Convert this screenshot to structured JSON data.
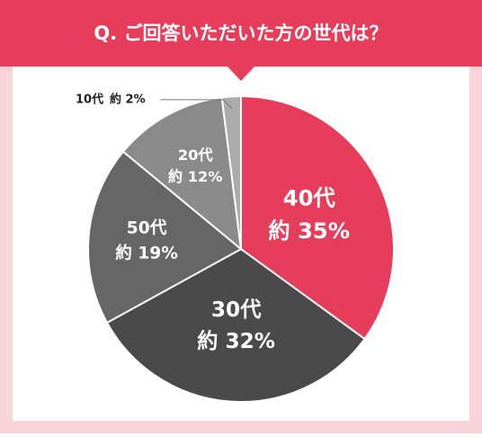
{
  "chart_data": {
    "type": "pie",
    "title": "Q. ご回答いただいた方の世代は？",
    "categories": [
      "40代",
      "30代",
      "50代",
      "20代",
      "10代"
    ],
    "values": [
      35,
      32,
      19,
      12,
      2
    ],
    "value_labels": [
      "約 35%",
      "約 32%",
      "約 19%",
      "約 12%",
      "約 2%"
    ],
    "colors": [
      "#e63d5a",
      "#4a4a4a",
      "#666666",
      "#8a8a8a",
      "#ababab"
    ]
  }
}
